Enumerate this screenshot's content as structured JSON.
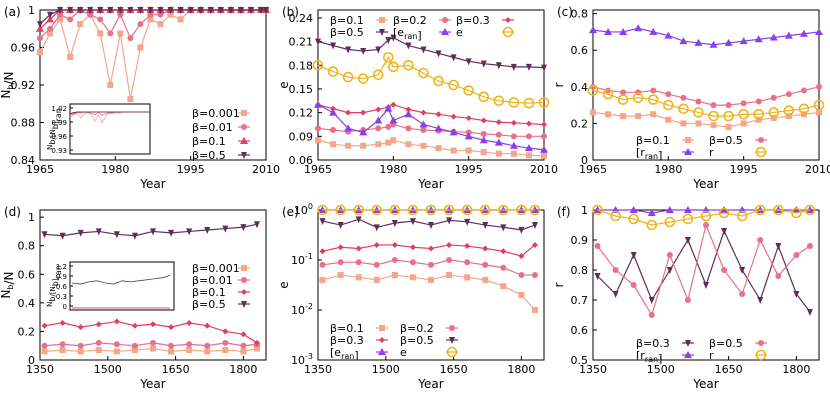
{
  "colors": {
    "b0001": "#f4a58c",
    "b001": "#e8708a",
    "b01": "#e0405e",
    "b05": "#5e2e58",
    "b02": "#e8708a",
    "b03": "#e0405e",
    "ran": "#8a3fe8",
    "r": "#f0b418"
  },
  "chart_data": [
    {
      "panel": "(a)",
      "type": "line",
      "xlabel": "Year",
      "ylabel": "N_b/N",
      "xticks": [
        "1965",
        "1980",
        "1995",
        "2010"
      ],
      "yticks": [
        "0.84",
        "0.88",
        "0.92",
        "0.96",
        "1"
      ],
      "xlim": [
        1965,
        2010
      ],
      "ylim": [
        0.84,
        1.0
      ],
      "legend": "bottom-right",
      "x": [
        1965,
        1967,
        1969,
        1971,
        1973,
        1975,
        1977,
        1979,
        1981,
        1983,
        1985,
        1987,
        1989,
        1991,
        1993,
        1995,
        1997,
        1999,
        2001,
        2003,
        2005,
        2007,
        2009,
        2010
      ],
      "series": [
        {
          "name": "β=0.001",
          "color_key": "b0001",
          "marker": "square",
          "values": [
            0.955,
            0.975,
            0.99,
            0.95,
            0.985,
            0.995,
            0.975,
            0.92,
            0.975,
            0.905,
            0.96,
            0.99,
            0.985,
            0.995,
            0.99,
            1,
            1,
            1,
            1,
            1,
            1,
            1,
            1,
            1
          ]
        },
        {
          "name": "β=0.01",
          "color_key": "b001",
          "marker": "circle",
          "values": [
            0.97,
            0.98,
            0.995,
            0.99,
            1,
            0.995,
            0.99,
            0.975,
            0.995,
            0.97,
            0.985,
            0.995,
            0.995,
            1,
            1,
            1,
            1,
            1,
            1,
            1,
            1,
            1,
            1,
            1
          ]
        },
        {
          "name": "β=0.1",
          "color_key": "b01",
          "marker": "triangle",
          "values": [
            0.98,
            0.99,
            1,
            1,
            1,
            1,
            1,
            1,
            1,
            1,
            1,
            1,
            1,
            1,
            1,
            1,
            1,
            1,
            1,
            1,
            1,
            1,
            1,
            1
          ]
        },
        {
          "name": "β=0.5",
          "color_key": "b05",
          "marker": "tri-down",
          "values": [
            0.985,
            0.995,
            1,
            1,
            1,
            1,
            1,
            1,
            1,
            1,
            1,
            1,
            1,
            1,
            1,
            1,
            1,
            1,
            1,
            1,
            1,
            1,
            1,
            1
          ]
        }
      ],
      "inset": {
        "ylabel": "N_b/[N_b]_ran",
        "yticks": [
          "1.02",
          "0.99",
          "0.96",
          "0.93"
        ]
      }
    },
    {
      "panel": "(b)",
      "type": "line",
      "xlabel": "Year",
      "ylabel": "e",
      "xticks": [
        "1965",
        "1980",
        "1995",
        "2010"
      ],
      "yticks": [
        "0.06",
        "0.09",
        "0.12",
        "0.15",
        "0.18",
        "0.21",
        "0.24"
      ],
      "xlim": [
        1965,
        2010
      ],
      "ylim": [
        0.06,
        0.25
      ],
      "legend": "top",
      "x": [
        1965,
        1968,
        1971,
        1974,
        1977,
        1979,
        1980,
        1983,
        1986,
        1989,
        1992,
        1995,
        1998,
        2001,
        2004,
        2007,
        2010
      ],
      "series": [
        {
          "name": "β=0.1",
          "color_key": "b0001",
          "marker": "square",
          "values": [
            0.085,
            0.08,
            0.078,
            0.078,
            0.08,
            0.082,
            0.085,
            0.08,
            0.078,
            0.075,
            0.072,
            0.072,
            0.07,
            0.068,
            0.068,
            0.066,
            0.065
          ]
        },
        {
          "name": "β=0.2",
          "color_key": "b001",
          "marker": "circle",
          "values": [
            0.1,
            0.098,
            0.096,
            0.098,
            0.1,
            0.102,
            0.105,
            0.1,
            0.098,
            0.097,
            0.096,
            0.095,
            0.093,
            0.092,
            0.09,
            0.09,
            0.09
          ]
        },
        {
          "name": "β=0.3",
          "color_key": "b01",
          "marker": "diamond",
          "values": [
            0.13,
            0.125,
            0.12,
            0.12,
            0.124,
            0.127,
            0.13,
            0.124,
            0.12,
            0.118,
            0.115,
            0.113,
            0.11,
            0.108,
            0.107,
            0.106,
            0.105
          ]
        },
        {
          "name": "β=0.5",
          "color_key": "b05",
          "marker": "tri-down",
          "values": [
            0.21,
            0.205,
            0.2,
            0.198,
            0.2,
            0.212,
            0.215,
            0.205,
            0.2,
            0.195,
            0.19,
            0.185,
            0.182,
            0.18,
            0.178,
            0.178,
            0.177
          ]
        },
        {
          "name": "[e_ran]",
          "color_key": "ran",
          "marker": "triangle",
          "values": [
            0.13,
            0.12,
            0.1,
            0.095,
            0.11,
            0.125,
            0.11,
            0.118,
            0.105,
            0.1,
            0.095,
            0.09,
            0.085,
            0.082,
            0.078,
            0.075,
            0.073
          ]
        },
        {
          "name": "e",
          "color_key": "r",
          "marker": "circle-open",
          "values": [
            0.18,
            0.172,
            0.165,
            0.163,
            0.168,
            0.19,
            0.178,
            0.18,
            0.17,
            0.16,
            0.155,
            0.148,
            0.14,
            0.135,
            0.133,
            0.132,
            0.133
          ]
        }
      ]
    },
    {
      "panel": "(c)",
      "type": "line",
      "xlabel": "Year",
      "ylabel": "r",
      "xticks": [
        "1965",
        "1980",
        "1995",
        "2010"
      ],
      "yticks": [
        "0",
        "0.2",
        "0.4",
        "0.6",
        "0.8"
      ],
      "xlim": [
        1965,
        2010
      ],
      "ylim": [
        0,
        0.82
      ],
      "legend": "bottom-right",
      "x": [
        1965,
        1968,
        1971,
        1974,
        1977,
        1980,
        1983,
        1986,
        1989,
        1992,
        1995,
        1998,
        2001,
        2004,
        2007,
        2010
      ],
      "series": [
        {
          "name": "β=0.1",
          "color_key": "b0001",
          "marker": "square",
          "values": [
            0.26,
            0.25,
            0.24,
            0.24,
            0.25,
            0.22,
            0.2,
            0.2,
            0.19,
            0.18,
            0.2,
            0.22,
            0.23,
            0.24,
            0.25,
            0.26
          ]
        },
        {
          "name": "β=0.5",
          "color_key": "b001",
          "marker": "circle",
          "values": [
            0.4,
            0.38,
            0.37,
            0.37,
            0.38,
            0.36,
            0.34,
            0.32,
            0.3,
            0.3,
            0.31,
            0.32,
            0.34,
            0.36,
            0.38,
            0.4
          ]
        },
        {
          "name": "[r_ran]",
          "color_key": "ran",
          "marker": "triangle",
          "values": [
            0.71,
            0.7,
            0.7,
            0.72,
            0.7,
            0.68,
            0.65,
            0.64,
            0.63,
            0.64,
            0.65,
            0.66,
            0.67,
            0.68,
            0.69,
            0.7
          ]
        },
        {
          "name": "r",
          "color_key": "r",
          "marker": "circle-open",
          "values": [
            0.38,
            0.36,
            0.33,
            0.34,
            0.33,
            0.3,
            0.28,
            0.26,
            0.24,
            0.24,
            0.25,
            0.25,
            0.26,
            0.27,
            0.28,
            0.3
          ]
        }
      ]
    },
    {
      "panel": "(d)",
      "type": "line",
      "xlabel": "Year",
      "ylabel": "N_b/N",
      "xticks": [
        "1350",
        "1500",
        "1650",
        "1800"
      ],
      "yticks": [
        "0",
        "0.2",
        "0.4",
        "0.6",
        "0.8",
        "1"
      ],
      "xlim": [
        1350,
        1850
      ],
      "ylim": [
        0,
        1.05
      ],
      "legend": "center-right",
      "x": [
        1360,
        1400,
        1440,
        1480,
        1520,
        1560,
        1600,
        1640,
        1680,
        1720,
        1760,
        1800,
        1830
      ],
      "series": [
        {
          "name": "β=0.001",
          "color_key": "b0001",
          "marker": "square",
          "values": [
            0.06,
            0.07,
            0.06,
            0.07,
            0.06,
            0.07,
            0.08,
            0.06,
            0.07,
            0.06,
            0.07,
            0.06,
            0.08
          ]
        },
        {
          "name": "β=0.01",
          "color_key": "b001",
          "marker": "circle",
          "values": [
            0.1,
            0.11,
            0.1,
            0.12,
            0.11,
            0.1,
            0.12,
            0.1,
            0.11,
            0.1,
            0.12,
            0.1,
            0.11
          ]
        },
        {
          "name": "β=0.1",
          "color_key": "b01",
          "marker": "diamond",
          "values": [
            0.24,
            0.26,
            0.23,
            0.25,
            0.27,
            0.24,
            0.25,
            0.23,
            0.26,
            0.24,
            0.2,
            0.18,
            0.12
          ]
        },
        {
          "name": "β=0.5",
          "color_key": "b05",
          "marker": "tri-down",
          "values": [
            0.88,
            0.87,
            0.89,
            0.9,
            0.88,
            0.87,
            0.9,
            0.89,
            0.9,
            0.91,
            0.92,
            0.93,
            0.95
          ]
        }
      ],
      "inset": {
        "ylabel": "N_b/[N_b]_ran",
        "yticks": [
          "1.2",
          "0.9",
          "0.6",
          "0.3",
          "0"
        ]
      }
    },
    {
      "panel": "(e)",
      "type": "line",
      "xlabel": "Year",
      "ylabel": "e",
      "xticks": [
        "1350",
        "1500",
        "1650",
        "1800"
      ],
      "yticks": [
        "10^-3",
        "10^-2",
        "10^-1",
        "10^0"
      ],
      "xlim": [
        1350,
        1850
      ],
      "ylim": [
        0.001,
        1
      ],
      "yscale": "log",
      "legend": "bottom",
      "x": [
        1360,
        1400,
        1440,
        1480,
        1520,
        1560,
        1600,
        1640,
        1680,
        1720,
        1760,
        1800,
        1830
      ],
      "series": [
        {
          "name": "β=0.1",
          "color_key": "b0001",
          "marker": "square",
          "values": [
            0.04,
            0.05,
            0.045,
            0.04,
            0.05,
            0.045,
            0.04,
            0.05,
            0.045,
            0.04,
            0.03,
            0.02,
            0.01
          ]
        },
        {
          "name": "β=0.2",
          "color_key": "b001",
          "marker": "circle",
          "values": [
            0.08,
            0.09,
            0.09,
            0.08,
            0.1,
            0.09,
            0.08,
            0.1,
            0.09,
            0.08,
            0.07,
            0.05,
            0.05
          ]
        },
        {
          "name": "β=0.3",
          "color_key": "b01",
          "marker": "diamond",
          "values": [
            0.15,
            0.18,
            0.17,
            0.2,
            0.2,
            0.18,
            0.17,
            0.2,
            0.19,
            0.17,
            0.15,
            0.12,
            0.2
          ]
        },
        {
          "name": "β=0.5",
          "color_key": "b05",
          "marker": "tri-down",
          "values": [
            0.6,
            0.5,
            0.65,
            0.45,
            0.55,
            0.6,
            0.5,
            0.62,
            0.58,
            0.5,
            0.45,
            0.4,
            0.5
          ]
        },
        {
          "name": "[e_ran]",
          "color_key": "ran",
          "marker": "triangle",
          "values": [
            1,
            1,
            1,
            1,
            1,
            1,
            1,
            1,
            1,
            1,
            1,
            1,
            1
          ]
        },
        {
          "name": "e",
          "color_key": "r",
          "marker": "circle-open",
          "values": [
            1,
            1,
            1,
            1,
            1,
            1,
            1,
            1,
            1,
            1,
            1,
            1,
            1
          ]
        }
      ]
    },
    {
      "panel": "(f)",
      "type": "line",
      "xlabel": "Year",
      "ylabel": "r",
      "xticks": [
        "1350",
        "1500",
        "1650",
        "1800"
      ],
      "yticks": [
        "0.5",
        "0.6",
        "0.7",
        "0.8",
        "0.9",
        "1"
      ],
      "xlim": [
        1350,
        1850
      ],
      "ylim": [
        0.5,
        1.0
      ],
      "legend": "bottom-right",
      "x": [
        1360,
        1400,
        1440,
        1480,
        1520,
        1560,
        1600,
        1640,
        1680,
        1720,
        1760,
        1800,
        1830
      ],
      "series": [
        {
          "name": "β=0.3",
          "color_key": "b05",
          "marker": "tri-down",
          "values": [
            0.78,
            0.72,
            0.85,
            0.7,
            0.8,
            0.9,
            0.75,
            0.93,
            0.8,
            0.7,
            0.88,
            0.72,
            0.66
          ]
        },
        {
          "name": "β=0.5",
          "color_key": "b001",
          "marker": "circle",
          "values": [
            0.88,
            0.8,
            0.75,
            0.65,
            0.85,
            0.7,
            0.95,
            0.8,
            0.72,
            0.9,
            0.78,
            0.85,
            0.88
          ]
        },
        {
          "name": "[r_ran]",
          "color_key": "ran",
          "marker": "triangle",
          "values": [
            1,
            1,
            1,
            0.99,
            1,
            1,
            1,
            1,
            1,
            1,
            1,
            1,
            1
          ]
        },
        {
          "name": "r",
          "color_key": "r",
          "marker": "circle-open",
          "values": [
            1,
            0.98,
            0.97,
            0.95,
            0.96,
            0.97,
            0.98,
            0.99,
            0.98,
            1,
            1,
            0.99,
            1
          ]
        }
      ]
    }
  ]
}
